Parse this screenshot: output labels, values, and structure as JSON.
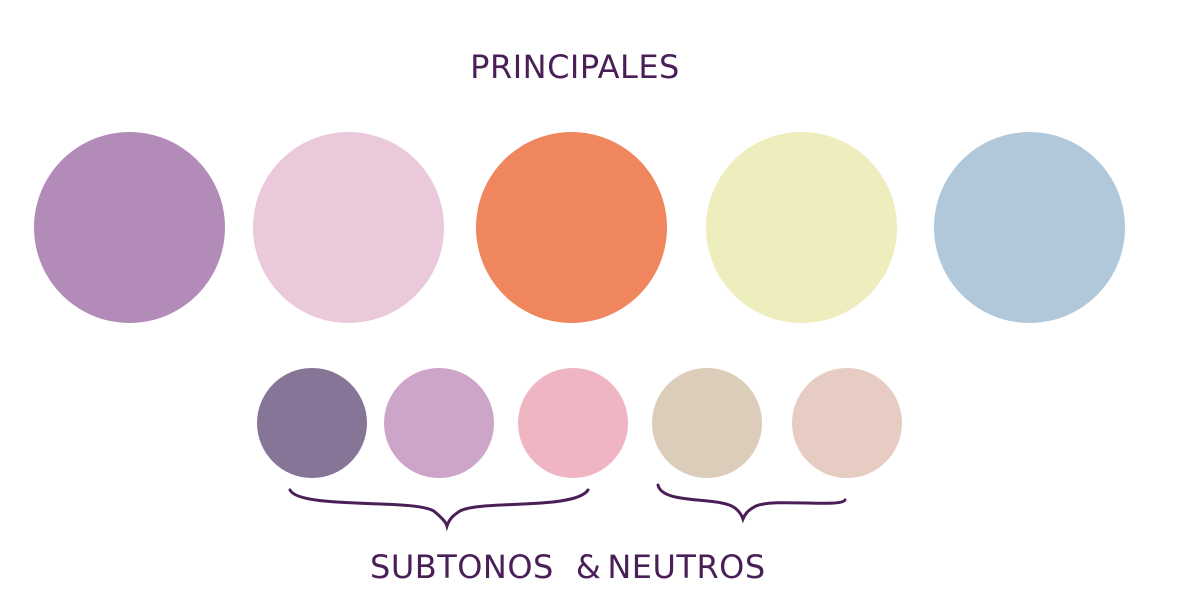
{
  "titles": {
    "principales": "PRINCIPALES",
    "subtonos": "SUBTONOS",
    "amp": "&",
    "neutros": "NEUTROS"
  },
  "palette": {
    "principales": [
      {
        "color": "#B28BB8"
      },
      {
        "color": "#EAC9DA"
      },
      {
        "color": "#EF865D"
      },
      {
        "color": "#EEEDBD"
      },
      {
        "color": "#B1C8DA"
      }
    ],
    "subtonos": [
      {
        "color": "#877598"
      },
      {
        "color": "#CCA5C9"
      },
      {
        "color": "#EFB5C3"
      }
    ],
    "neutros": [
      {
        "color": "#DBCDB9"
      },
      {
        "color": "#E6CCC3"
      }
    ],
    "brace_color": "#4A1F57"
  }
}
